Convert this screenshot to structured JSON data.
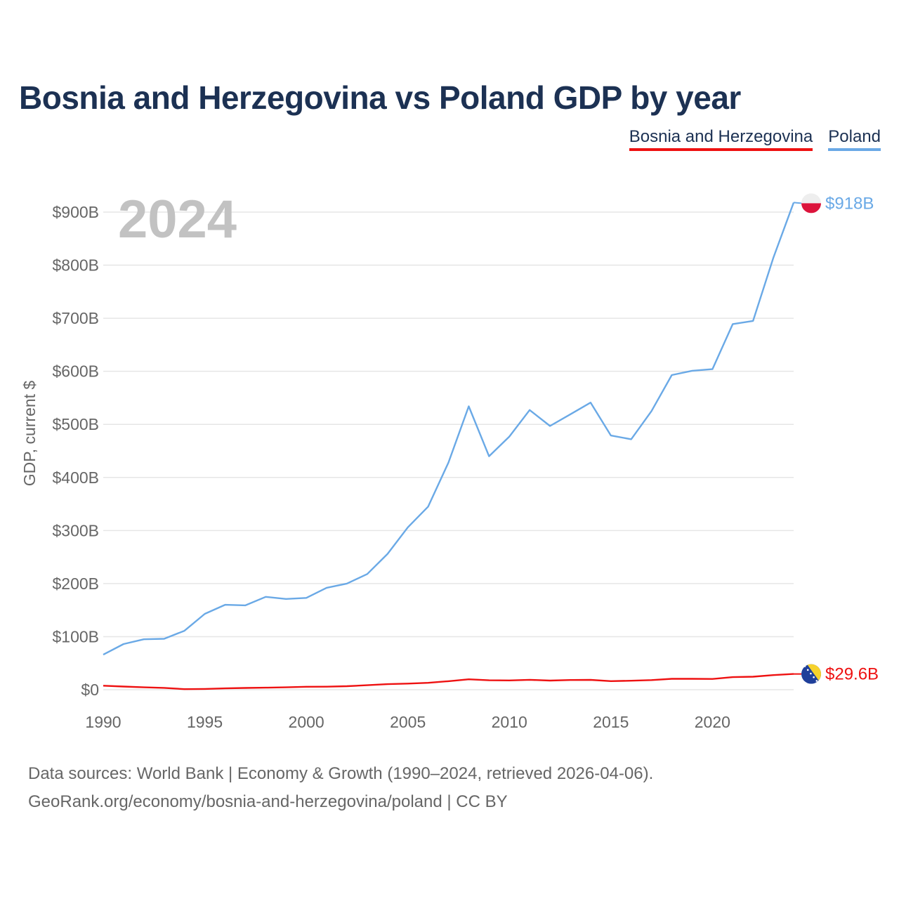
{
  "title": "Bosnia and Herzegovina vs Poland GDP by year",
  "legend": [
    {
      "label": "Bosnia and Herzegovina",
      "color": "#ee1111"
    },
    {
      "label": "Poland",
      "color": "#6aa9e6"
    }
  ],
  "year_watermark": "2024",
  "source_line1": "Data sources: World Bank | Economy & Growth (1990–2024, retrieved 2026-04-06).",
  "source_line2": "GeoRank.org/economy/bosnia-and-herzegovina/poland | CC BY",
  "chart_data": {
    "type": "line",
    "title": "Bosnia and Herzegovina vs Poland GDP by year",
    "xlabel": "",
    "ylabel": "GDP, current $",
    "xlim": [
      1990,
      2024
    ],
    "ylim": [
      0,
      900
    ],
    "x_ticks": [
      1990,
      1995,
      2000,
      2005,
      2010,
      2015,
      2020
    ],
    "y_ticks": [
      {
        "value": 0,
        "label": "$0"
      },
      {
        "value": 100,
        "label": "$100B"
      },
      {
        "value": 200,
        "label": "$200B"
      },
      {
        "value": 300,
        "label": "$300B"
      },
      {
        "value": 400,
        "label": "$400B"
      },
      {
        "value": 500,
        "label": "$500B"
      },
      {
        "value": 600,
        "label": "$600B"
      },
      {
        "value": 700,
        "label": "$700B"
      },
      {
        "value": 800,
        "label": "$800B"
      },
      {
        "value": 900,
        "label": "$900B"
      }
    ],
    "grid": true,
    "legend_position": "top-right",
    "x": [
      1990,
      1991,
      1992,
      1993,
      1994,
      1995,
      1996,
      1997,
      1998,
      1999,
      2000,
      2001,
      2002,
      2003,
      2004,
      2005,
      2006,
      2007,
      2008,
      2009,
      2010,
      2011,
      2012,
      2013,
      2014,
      2015,
      2016,
      2017,
      2018,
      2019,
      2020,
      2021,
      2022,
      2023,
      2024
    ],
    "series": [
      {
        "name": "Poland",
        "color": "#6aa9e6",
        "end_label": "$918B",
        "values": [
          66,
          86,
          95,
          96,
          111,
          143,
          160,
          159,
          175,
          171,
          173,
          192,
          200,
          218,
          256,
          306,
          345,
          428,
          534,
          440,
          477,
          527,
          497,
          519,
          541,
          479,
          472,
          525,
          593,
          601,
          604,
          689,
          695,
          814,
          918
        ]
      },
      {
        "name": "Bosnia and Herzegovina",
        "color": "#ee1111",
        "end_label": "$29.6B",
        "values": [
          7.5,
          6,
          4.5,
          3.5,
          1,
          1.5,
          2.5,
          3.3,
          3.8,
          4.5,
          5.5,
          5.7,
          6.6,
          8.5,
          10.5,
          11.5,
          13,
          16,
          19.6,
          17.8,
          17.5,
          18.7,
          17.2,
          18.2,
          18.5,
          16.2,
          17,
          18.1,
          20.5,
          20.5,
          20.2,
          23.7,
          24.5,
          27.5,
          29.6
        ]
      }
    ]
  }
}
